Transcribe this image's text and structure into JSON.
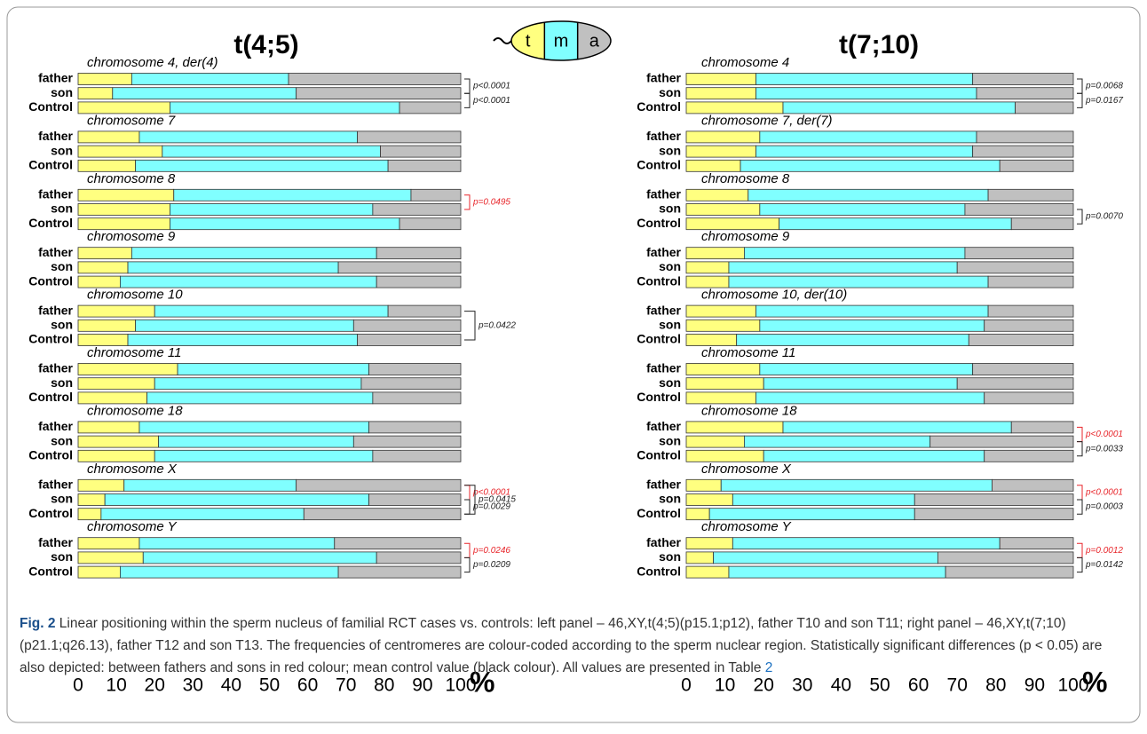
{
  "chart_data": [
    {
      "type": "bar",
      "orientation": "horizontal",
      "stacked": true,
      "title": "t(4;5)",
      "groups": [
        "chromosome 4, der(4)",
        "chromosome 7",
        "chromosome 8",
        "chromosome 9",
        "chromosome 10",
        "chromosome 11",
        "chromosome 18",
        "chromosome X",
        "chromosome Y"
      ],
      "categories": [
        "father",
        "son",
        "Control"
      ],
      "series": [
        {
          "name": "t",
          "color": "#ffff80",
          "values": [
            [
              14,
              9,
              24
            ],
            [
              16,
              22,
              15
            ],
            [
              25,
              24,
              24
            ],
            [
              14,
              13,
              11
            ],
            [
              20,
              15,
              13
            ],
            [
              26,
              20,
              18
            ],
            [
              16,
              21,
              20
            ],
            [
              12,
              7,
              6
            ],
            [
              16,
              17,
              11
            ]
          ]
        },
        {
          "name": "m",
          "color": "#80ffff",
          "values": [
            [
              41,
              48,
              60
            ],
            [
              57,
              57,
              66
            ],
            [
              62,
              53,
              60
            ],
            [
              64,
              55,
              67
            ],
            [
              61,
              57,
              60
            ],
            [
              50,
              54,
              59
            ],
            [
              60,
              51,
              57
            ],
            [
              45,
              69,
              53
            ],
            [
              51,
              61,
              57
            ]
          ]
        },
        {
          "name": "a",
          "color": "#c0c0c0",
          "values": [
            [
              45,
              43,
              16
            ],
            [
              27,
              21,
              19
            ],
            [
              13,
              23,
              16
            ],
            [
              22,
              32,
              22
            ],
            [
              19,
              28,
              27
            ],
            [
              24,
              26,
              23
            ],
            [
              24,
              28,
              23
            ],
            [
              43,
              24,
              41
            ],
            [
              33,
              22,
              32
            ]
          ]
        }
      ],
      "xlim": [
        0,
        100
      ],
      "xticks": [
        0,
        10,
        20,
        30,
        40,
        50,
        60,
        70,
        80,
        90,
        100
      ],
      "xlabel": "%",
      "annotations": [
        {
          "group": 0,
          "rows": [
            0,
            1
          ],
          "text": "p<0.0001",
          "color": "#222222"
        },
        {
          "group": 0,
          "rows": [
            1,
            2
          ],
          "text": "p<0.0001",
          "color": "#222222"
        },
        {
          "group": 2,
          "rows": [
            0,
            1
          ],
          "text": "p=0.0495",
          "color": "#e8262b"
        },
        {
          "group": 4,
          "rows": [
            0,
            2
          ],
          "text": "p=0.0422",
          "color": "#222222"
        },
        {
          "group": 7,
          "rows": [
            0,
            1
          ],
          "text": "p<0.0001",
          "color": "#e8262b"
        },
        {
          "group": 7,
          "rows": [
            0,
            2
          ],
          "text": "p=0.0415",
          "color": "#222222"
        },
        {
          "group": 7,
          "rows": [
            1,
            2
          ],
          "text": "p=0.0029",
          "color": "#222222"
        },
        {
          "group": 8,
          "rows": [
            0,
            1
          ],
          "text": "p=0.0246",
          "color": "#e8262b"
        },
        {
          "group": 8,
          "rows": [
            1,
            2
          ],
          "text": "p=0.0209",
          "color": "#222222"
        }
      ]
    },
    {
      "type": "bar",
      "orientation": "horizontal",
      "stacked": true,
      "title": "t(7;10)",
      "groups": [
        "chromosome 4",
        "chromosome 7, der(7)",
        "chromosome 8",
        "chromosome 9",
        "chromosome 10, der(10)",
        "chromosome 11",
        "chromosome 18",
        "chromosome X",
        "chromosome Y"
      ],
      "categories": [
        "father",
        "son",
        "Control"
      ],
      "series": [
        {
          "color": "#ffff80",
          "values": [
            [
              18,
              18,
              25
            ],
            [
              19,
              18,
              14
            ],
            [
              16,
              19,
              24
            ],
            [
              15,
              11,
              11
            ],
            [
              18,
              19,
              13
            ],
            [
              19,
              20,
              18
            ],
            [
              25,
              15,
              20
            ],
            [
              9,
              12,
              6
            ],
            [
              12,
              7,
              11
            ]
          ]
        },
        {
          "color": "#80ffff",
          "values": [
            [
              56,
              57,
              60
            ],
            [
              56,
              56,
              67
            ],
            [
              62,
              53,
              60
            ],
            [
              57,
              59,
              67
            ],
            [
              60,
              58,
              60
            ],
            [
              55,
              50,
              59
            ],
            [
              59,
              48,
              57
            ],
            [
              70,
              47,
              53
            ],
            [
              69,
              58,
              56
            ]
          ]
        },
        {
          "color": "#c0c0c0",
          "values": [
            [
              26,
              25,
              15
            ],
            [
              25,
              26,
              19
            ],
            [
              22,
              28,
              16
            ],
            [
              28,
              30,
              22
            ],
            [
              22,
              23,
              27
            ],
            [
              26,
              30,
              23
            ],
            [
              16,
              37,
              23
            ],
            [
              21,
              41,
              41
            ],
            [
              19,
              35,
              33
            ]
          ]
        }
      ],
      "xlim": [
        0,
        100
      ],
      "xticks": [
        0,
        10,
        20,
        30,
        40,
        50,
        60,
        70,
        80,
        90,
        100
      ],
      "xlabel": "%",
      "annotations": [
        {
          "group": 0,
          "rows": [
            0,
            1
          ],
          "text": "p=0.0068",
          "color": "#222222"
        },
        {
          "group": 0,
          "rows": [
            1,
            2
          ],
          "text": "p=0.0167",
          "color": "#222222"
        },
        {
          "group": 2,
          "rows": [
            1,
            2
          ],
          "text": "p=0.0070",
          "color": "#222222"
        },
        {
          "group": 6,
          "rows": [
            0,
            1
          ],
          "text": "p<0.0001",
          "color": "#e8262b"
        },
        {
          "group": 6,
          "rows": [
            1,
            2
          ],
          "text": "p=0.0033",
          "color": "#222222"
        },
        {
          "group": 7,
          "rows": [
            0,
            1
          ],
          "text": "p<0.0001",
          "color": "#e8262b"
        },
        {
          "group": 7,
          "rows": [
            1,
            2
          ],
          "text": "p=0.0003",
          "color": "#222222"
        },
        {
          "group": 8,
          "rows": [
            0,
            1
          ],
          "text": "p=0.0012",
          "color": "#e8262b"
        },
        {
          "group": 8,
          "rows": [
            1,
            2
          ],
          "text": "p=0.0142",
          "color": "#222222"
        }
      ]
    }
  ],
  "caption": {
    "label": "Fig. 2",
    "text": "Linear positioning within the sperm nucleus of familial RCT cases vs. controls: left panel – 46,XY,t(4;5)(p15.1;p12), father T10 and son T11; right panel – 46,XY,t(7;10)(p21.1;q26.13), father T12 and son T13. The frequencies of centromeres are colour-coded according to the sperm nuclear region. Statistically significant differences (p < 0.05) are also depicted: between fathers and sons in red colour; mean control value (black colour). All values are presented in Table",
    "ref": "2"
  }
}
